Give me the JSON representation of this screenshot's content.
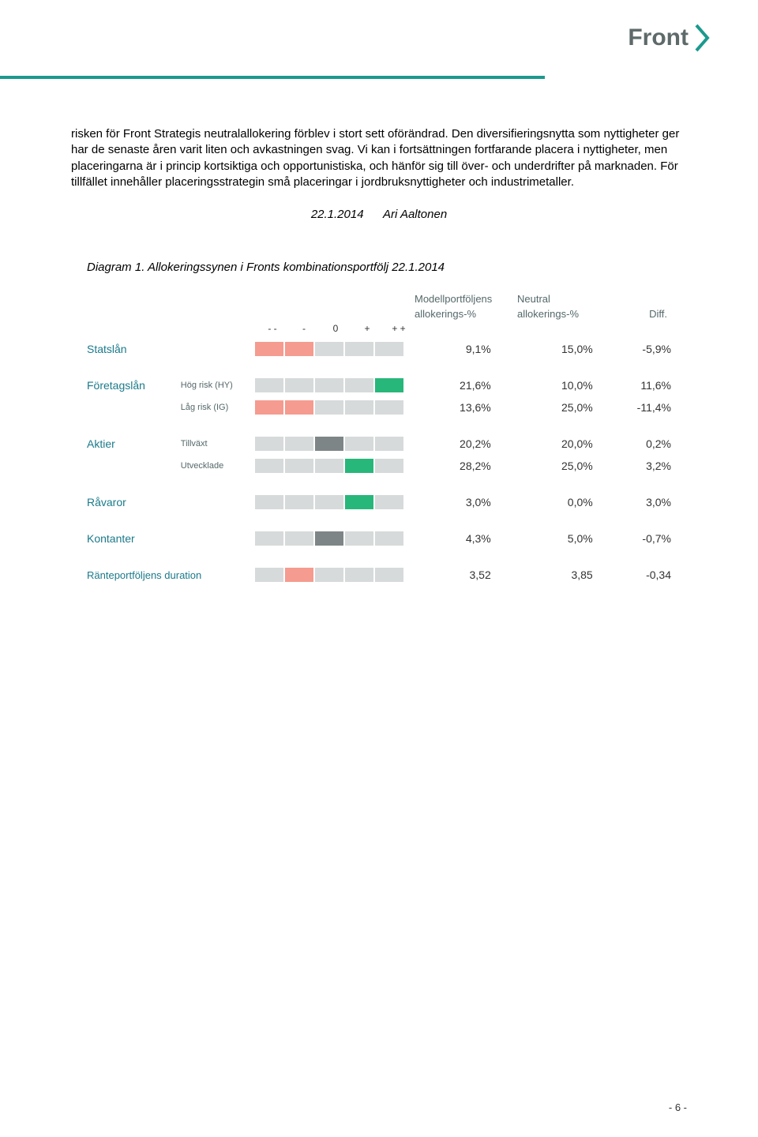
{
  "brand": "Front",
  "brand_color": "#5e6a6a",
  "chevron_color": "#1b9a8e",
  "divider_color": "#1b9a8e",
  "body_paragraph": "risken för Front Strategis neutralallokering förblev i stort sett oförändrad. Den diversifieringsnytta som nyttigheter ger har de senaste åren varit liten och avkastningen svag. Vi kan i fortsättningen fortfarande placera i nyttigheter, men placeringarna är i princip kortsiktiga och opportunistiska, och hänför sig till över- och underdrifter på marknaden. För tillfället innehåller placeringsstrategin små placeringar i jordbruksnyttigheter och industrimetaller.",
  "date": "22.1.2014",
  "author": "Ari Aaltonen",
  "diagram_title": "Diagram 1. Allokeringssynen i Fronts kombinationsportfölj 22.1.2014",
  "headers": {
    "col1a": "Modellportföljens",
    "col1b": "allokerings-%",
    "col2a": "Neutral",
    "col2b": "allokerings-%",
    "col3": "Diff."
  },
  "ticks": [
    "- -",
    "-",
    "0",
    "+",
    "+ +"
  ],
  "colors": {
    "gray": "#d6dada",
    "salmon": "#f59b8f",
    "green": "#28b77a",
    "darkgray": "#7d8587",
    "label": "#1b7a8a",
    "sublabel": "#55686a"
  },
  "rows": [
    {
      "label": "Statslån",
      "sublabel": "",
      "cells": [
        "salmon",
        "salmon",
        "gray",
        "gray",
        "gray"
      ],
      "v1": "9,1%",
      "v2": "15,0%",
      "v3": "-5,9%"
    },
    {
      "label": "Företagslån",
      "sublabel": "Hög risk (HY)",
      "cells": [
        "gray",
        "gray",
        "gray",
        "gray",
        "green"
      ],
      "v1": "21,6%",
      "v2": "10,0%",
      "v3": "11,6%"
    },
    {
      "label": "",
      "sublabel": "Låg risk (IG)",
      "cells": [
        "salmon",
        "salmon",
        "gray",
        "gray",
        "gray"
      ],
      "v1": "13,6%",
      "v2": "25,0%",
      "v3": "-11,4%"
    },
    {
      "label": "Aktier",
      "sublabel": "Tillväxt",
      "cells": [
        "gray",
        "gray",
        "darkgray",
        "gray",
        "gray"
      ],
      "v1": "20,2%",
      "v2": "20,0%",
      "v3": "0,2%"
    },
    {
      "label": "",
      "sublabel": "Utvecklade",
      "cells": [
        "gray",
        "gray",
        "gray",
        "green",
        "gray"
      ],
      "v1": "28,2%",
      "v2": "25,0%",
      "v3": "3,2%"
    },
    {
      "label": "Råvaror",
      "sublabel": "",
      "cells": [
        "gray",
        "gray",
        "gray",
        "green",
        "gray"
      ],
      "v1": "3,0%",
      "v2": "0,0%",
      "v3": "3,0%"
    },
    {
      "label": "Kontanter",
      "sublabel": "",
      "cells": [
        "gray",
        "gray",
        "darkgray",
        "gray",
        "gray"
      ],
      "v1": "4,3%",
      "v2": "5,0%",
      "v3": "-0,7%"
    },
    {
      "label": "Ränteportföljens duration",
      "sublabel": "",
      "cells": [
        "gray",
        "salmon",
        "gray",
        "gray",
        "gray"
      ],
      "v1": "3,52",
      "v2": "3,85",
      "v3": "-0,34"
    }
  ],
  "page_number": "- 6 -"
}
